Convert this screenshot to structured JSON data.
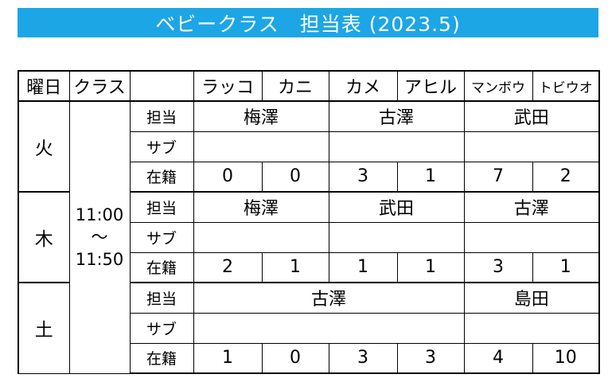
{
  "title": "ベビークラス　担当表 (2023.5)",
  "header": {
    "day": "曜日",
    "class": "クラス",
    "blank": "",
    "columns": [
      "ラッコ",
      "カニ",
      "カメ",
      "アヒル",
      "マンボウ",
      "トビウオ"
    ]
  },
  "labels": {
    "teacher": "担当",
    "sub": "サブ",
    "enrolled": "在籍"
  },
  "time": {
    "start": "11:00",
    "sep": "～",
    "end": "11:50"
  },
  "days": [
    {
      "day": "火",
      "teachers": [
        "梅澤",
        "古澤",
        "武田"
      ],
      "enrolled": [
        "0",
        "0",
        "3",
        "1",
        "7",
        "2"
      ]
    },
    {
      "day": "木",
      "teachers": [
        "梅澤",
        "武田",
        "古澤"
      ],
      "enrolled": [
        "2",
        "1",
        "1",
        "1",
        "3",
        "1"
      ]
    },
    {
      "day": "土",
      "teachers": [
        "古澤",
        "島田"
      ],
      "enrolled": [
        "1",
        "0",
        "3",
        "3",
        "4",
        "10"
      ]
    }
  ]
}
